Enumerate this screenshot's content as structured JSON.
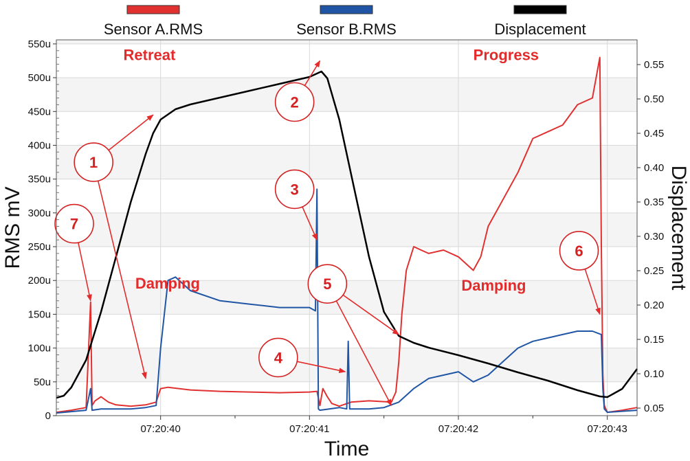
{
  "chart_data": {
    "type": "line",
    "xlabel": "Time",
    "ylabel_left": "RMS mV",
    "ylabel_right": "Displacement",
    "x_ticks": [
      "07:20:40",
      "07:20:41",
      "07:20:42",
      "07:20:43"
    ],
    "x_tick_values": [
      40,
      41,
      42,
      43
    ],
    "xlim": [
      39.3,
      43.2
    ],
    "y_left_ticks": [
      "0",
      "50u",
      "100u",
      "150u",
      "200u",
      "250u",
      "300u",
      "350u",
      "400u",
      "450u",
      "500u",
      "550u"
    ],
    "y_left_values": [
      0,
      50,
      100,
      150,
      200,
      250,
      300,
      350,
      400,
      450,
      500,
      550
    ],
    "ylim_left": [
      0,
      556
    ],
    "y_right_ticks": [
      "0.05",
      "0.10",
      "0.15",
      "0.20",
      "0.25",
      "0.30",
      "0.35",
      "0.40",
      "0.45",
      "0.50",
      "0.55"
    ],
    "y_right_values": [
      0.05,
      0.1,
      0.15,
      0.2,
      0.25,
      0.3,
      0.35,
      0.4,
      0.45,
      0.5,
      0.55
    ],
    "ylim_right": [
      0.039,
      0.586
    ],
    "grid": true,
    "legend_position": "top",
    "series": [
      {
        "name": "Sensor A.RMS",
        "color": "#e03030",
        "axis": "left",
        "x": [
          39.3,
          39.4,
          39.5,
          39.53,
          39.54,
          39.56,
          39.6,
          39.65,
          39.7,
          39.8,
          39.9,
          39.97,
          40.0,
          40.05,
          40.2,
          40.4,
          40.6,
          40.8,
          41.0,
          41.05,
          41.07,
          41.09,
          41.12,
          41.15,
          41.2,
          41.28,
          41.4,
          41.55,
          41.58,
          41.6,
          41.62,
          41.65,
          41.7,
          41.75,
          41.8,
          41.9,
          42.0,
          42.1,
          42.15,
          42.2,
          42.3,
          42.4,
          42.5,
          42.6,
          42.7,
          42.8,
          42.9,
          42.95,
          42.96,
          42.97,
          42.98,
          43.0,
          43.1,
          43.2
        ],
        "y": [
          5,
          8,
          12,
          168,
          15,
          22,
          28,
          20,
          16,
          14,
          16,
          20,
          40,
          42,
          38,
          36,
          35,
          34,
          35,
          36,
          15,
          40,
          28,
          18,
          14,
          20,
          22,
          20,
          35,
          80,
          150,
          215,
          250,
          245,
          240,
          245,
          235,
          215,
          235,
          280,
          320,
          360,
          410,
          420,
          430,
          460,
          470,
          530,
          250,
          60,
          15,
          5,
          8,
          12
        ]
      },
      {
        "name": "Sensor B.RMS",
        "color": "#1f55a4",
        "axis": "left",
        "x": [
          39.3,
          39.4,
          39.5,
          39.53,
          39.54,
          39.6,
          39.8,
          39.9,
          39.97,
          40.0,
          40.05,
          40.1,
          40.2,
          40.4,
          40.6,
          40.8,
          41.0,
          41.04,
          41.05,
          41.06,
          41.07,
          41.2,
          41.25,
          41.26,
          41.27,
          41.4,
          41.5,
          41.6,
          41.7,
          41.8,
          41.9,
          42.0,
          42.1,
          42.2,
          42.3,
          42.4,
          42.5,
          42.6,
          42.7,
          42.8,
          42.9,
          42.96,
          42.97,
          42.98,
          43.0,
          43.2
        ],
        "y": [
          4,
          6,
          8,
          40,
          8,
          10,
          10,
          12,
          15,
          100,
          200,
          205,
          185,
          170,
          165,
          160,
          160,
          155,
          335,
          10,
          8,
          12,
          10,
          110,
          10,
          10,
          12,
          20,
          40,
          55,
          60,
          65,
          50,
          60,
          80,
          100,
          110,
          115,
          120,
          125,
          125,
          120,
          40,
          10,
          5,
          8
        ]
      },
      {
        "name": "Displacement",
        "color": "#000000",
        "axis": "right",
        "x": [
          39.3,
          39.35,
          39.4,
          39.5,
          39.6,
          39.7,
          39.8,
          39.9,
          39.95,
          40.0,
          40.1,
          40.2,
          40.4,
          40.6,
          40.8,
          41.0,
          41.08,
          41.12,
          41.2,
          41.3,
          41.4,
          41.5,
          41.6,
          41.7,
          41.8,
          42.0,
          42.2,
          42.4,
          42.6,
          42.8,
          42.9,
          42.95,
          43.0,
          43.1,
          43.2
        ],
        "y": [
          0.065,
          0.068,
          0.08,
          0.12,
          0.19,
          0.27,
          0.35,
          0.42,
          0.45,
          0.47,
          0.485,
          0.492,
          0.502,
          0.512,
          0.522,
          0.532,
          0.54,
          0.53,
          0.47,
          0.37,
          0.27,
          0.19,
          0.155,
          0.145,
          0.138,
          0.127,
          0.115,
          0.102,
          0.09,
          0.076,
          0.07,
          0.067,
          0.066,
          0.078,
          0.107
        ]
      }
    ],
    "annotations": [
      {
        "text": "Retreat",
        "x": 39.75,
        "y": 526
      },
      {
        "text": "Progress",
        "x": 42.1,
        "y": 526
      },
      {
        "text": "Damping",
        "x": 39.83,
        "y": 188
      },
      {
        "text": "Damping",
        "x": 42.02,
        "y": 185
      }
    ],
    "markers": [
      {
        "label": "1",
        "cx": 39.55,
        "cy": 375,
        "arrows": [
          [
            39.95,
            445
          ],
          [
            39.9,
            55
          ]
        ]
      },
      {
        "label": "2",
        "cx": 40.9,
        "cy": 464,
        "arrows": [
          [
            41.07,
            525
          ]
        ]
      },
      {
        "label": "3",
        "cx": 40.9,
        "cy": 335,
        "arrows": [
          [
            41.05,
            260
          ]
        ]
      },
      {
        "label": "4",
        "cx": 40.79,
        "cy": 86,
        "arrows": [
          [
            41.24,
            65
          ]
        ]
      },
      {
        "label": "5",
        "cx": 41.12,
        "cy": 195,
        "arrows": [
          [
            41.6,
            120
          ],
          [
            41.55,
            15
          ]
        ]
      },
      {
        "label": "6",
        "cx": 42.81,
        "cy": 244,
        "arrows": [
          [
            42.95,
            150
          ]
        ]
      },
      {
        "label": "7",
        "cx": 39.42,
        "cy": 284,
        "arrows": [
          [
            39.53,
            170
          ]
        ]
      }
    ]
  }
}
